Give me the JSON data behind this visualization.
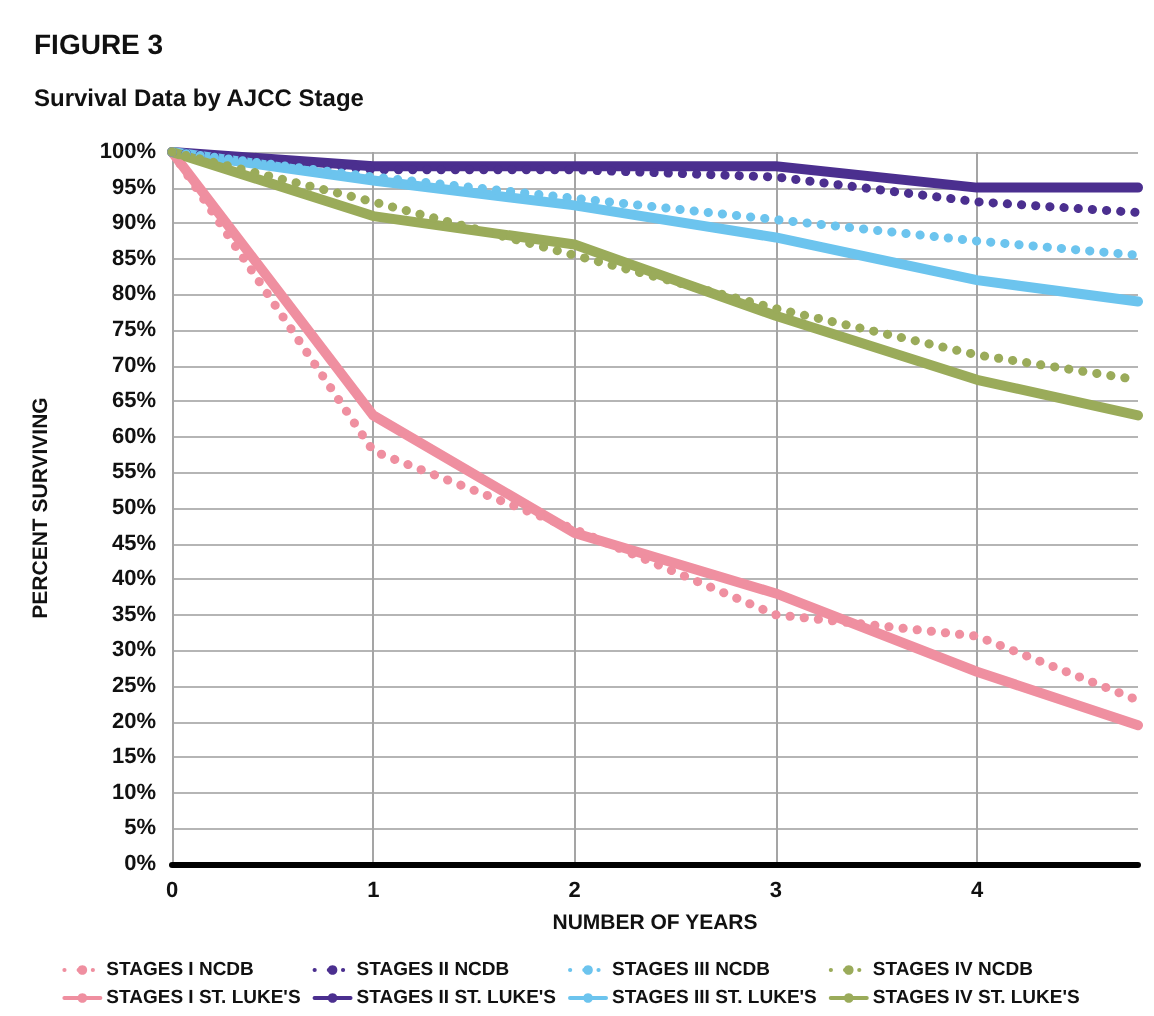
{
  "chart_data": {
    "type": "line",
    "title": "FIGURE 3",
    "subtitle": "Survival Data by AJCC Stage",
    "xlabel": "NUMBER OF YEARS",
    "ylabel": "PERCENT SURVIVING",
    "x": [
      0,
      1,
      2,
      3,
      4,
      4.8
    ],
    "series": [
      {
        "name": "STAGES I NCDB",
        "color": "#ef8fa0",
        "line_style": "dotted",
        "values": [
          100,
          58,
          47,
          35,
          32,
          23
        ]
      },
      {
        "name": "STAGES II NCDB",
        "color": "#4b2f8f",
        "line_style": "dotted",
        "values": [
          100,
          97.5,
          97.5,
          96.5,
          93,
          91.5
        ]
      },
      {
        "name": "STAGES III NCDB",
        "color": "#6cc4ee",
        "line_style": "dotted",
        "values": [
          100,
          96.5,
          93.5,
          90.5,
          87.5,
          85.5
        ]
      },
      {
        "name": "STAGES IV NCDB",
        "color": "#9aab5a",
        "line_style": "dotted",
        "values": [
          100,
          93,
          85.5,
          78,
          71.5,
          68
        ]
      },
      {
        "name": "STAGES I ST. LUKE'S",
        "color": "#ef8fa0",
        "line_style": "solid",
        "values": [
          100,
          63,
          46.5,
          38,
          27,
          19.5
        ]
      },
      {
        "name": "STAGES II ST. LUKE'S",
        "color": "#4b2f8f",
        "line_style": "solid",
        "values": [
          100,
          98,
          98,
          98,
          95,
          95
        ]
      },
      {
        "name": "STAGES III ST. LUKE'S",
        "color": "#6cc4ee",
        "line_style": "solid",
        "values": [
          100,
          96,
          92.5,
          88,
          82,
          79
        ]
      },
      {
        "name": "STAGES IV ST. LUKE'S",
        "color": "#9aab5a",
        "line_style": "solid",
        "values": [
          100,
          91,
          87,
          77,
          68,
          63
        ]
      }
    ],
    "xlim": [
      0,
      4.8
    ],
    "xticks": [
      0,
      1,
      2,
      3,
      4
    ],
    "ylim": [
      0,
      100
    ],
    "yticks": [
      {
        "value": 0,
        "label": "0%"
      },
      {
        "value": 5,
        "label": "5%"
      },
      {
        "value": 10,
        "label": "10%"
      },
      {
        "value": 15,
        "label": "15%"
      },
      {
        "value": 20,
        "label": "20%"
      },
      {
        "value": 25,
        "label": "25%"
      },
      {
        "value": 30,
        "label": "30%"
      },
      {
        "value": 35,
        "label": "35%"
      },
      {
        "value": 40,
        "label": "40%"
      },
      {
        "value": 45,
        "label": "45%"
      },
      {
        "value": 50,
        "label": "50%"
      },
      {
        "value": 55,
        "label": "55%"
      },
      {
        "value": 60,
        "label": "60%"
      },
      {
        "value": 65,
        "label": "65%"
      },
      {
        "value": 70,
        "label": "70%"
      },
      {
        "value": 75,
        "label": "75%"
      },
      {
        "value": 80,
        "label": "80%"
      },
      {
        "value": 85,
        "label": "85%"
      },
      {
        "value": 90,
        "label": "90%"
      },
      {
        "value": 95,
        "label": "95%"
      },
      {
        "value": 100,
        "label": "100%"
      }
    ],
    "grid": true,
    "legend": "bottom",
    "marker": "none"
  }
}
